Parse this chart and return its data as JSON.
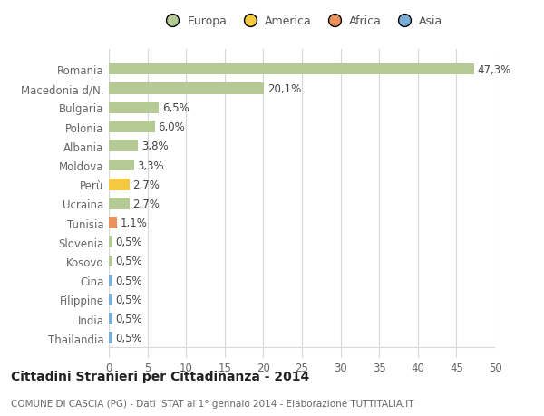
{
  "categories": [
    "Romania",
    "Macedonia d/N.",
    "Bulgaria",
    "Polonia",
    "Albania",
    "Moldova",
    "Perù",
    "Ucraina",
    "Tunisia",
    "Slovenia",
    "Kosovo",
    "Cina",
    "Filippine",
    "India",
    "Thailandia"
  ],
  "values": [
    47.3,
    20.1,
    6.5,
    6.0,
    3.8,
    3.3,
    2.7,
    2.7,
    1.1,
    0.5,
    0.5,
    0.5,
    0.5,
    0.5,
    0.5
  ],
  "labels": [
    "47,3%",
    "20,1%",
    "6,5%",
    "6,0%",
    "3,8%",
    "3,3%",
    "2,7%",
    "2,7%",
    "1,1%",
    "0,5%",
    "0,5%",
    "0,5%",
    "0,5%",
    "0,5%",
    "0,5%"
  ],
  "bar_colors": [
    "#b5c994",
    "#b5c994",
    "#b5c994",
    "#b5c994",
    "#b5c994",
    "#b5c994",
    "#f5c842",
    "#b5c994",
    "#e8915a",
    "#b5c994",
    "#b5c994",
    "#7baed4",
    "#7baed4",
    "#7baed4",
    "#7baed4"
  ],
  "legend_labels": [
    "Europa",
    "America",
    "Africa",
    "Asia"
  ],
  "legend_colors": [
    "#b5c994",
    "#f5c842",
    "#e8915a",
    "#7baed4"
  ],
  "xlim": [
    0,
    50
  ],
  "xticks": [
    0,
    5,
    10,
    15,
    20,
    25,
    30,
    35,
    40,
    45,
    50
  ],
  "title": "Cittadini Stranieri per Cittadinanza - 2014",
  "subtitle": "COMUNE DI CASCIA (PG) - Dati ISTAT al 1° gennaio 2014 - Elaborazione TUTTITALIA.IT",
  "background_color": "#ffffff",
  "grid_color": "#d8d8d8",
  "bar_height": 0.6,
  "label_fontsize": 8.5,
  "tick_fontsize": 8.5,
  "title_fontsize": 10,
  "subtitle_fontsize": 7.5,
  "legend_fontsize": 9
}
